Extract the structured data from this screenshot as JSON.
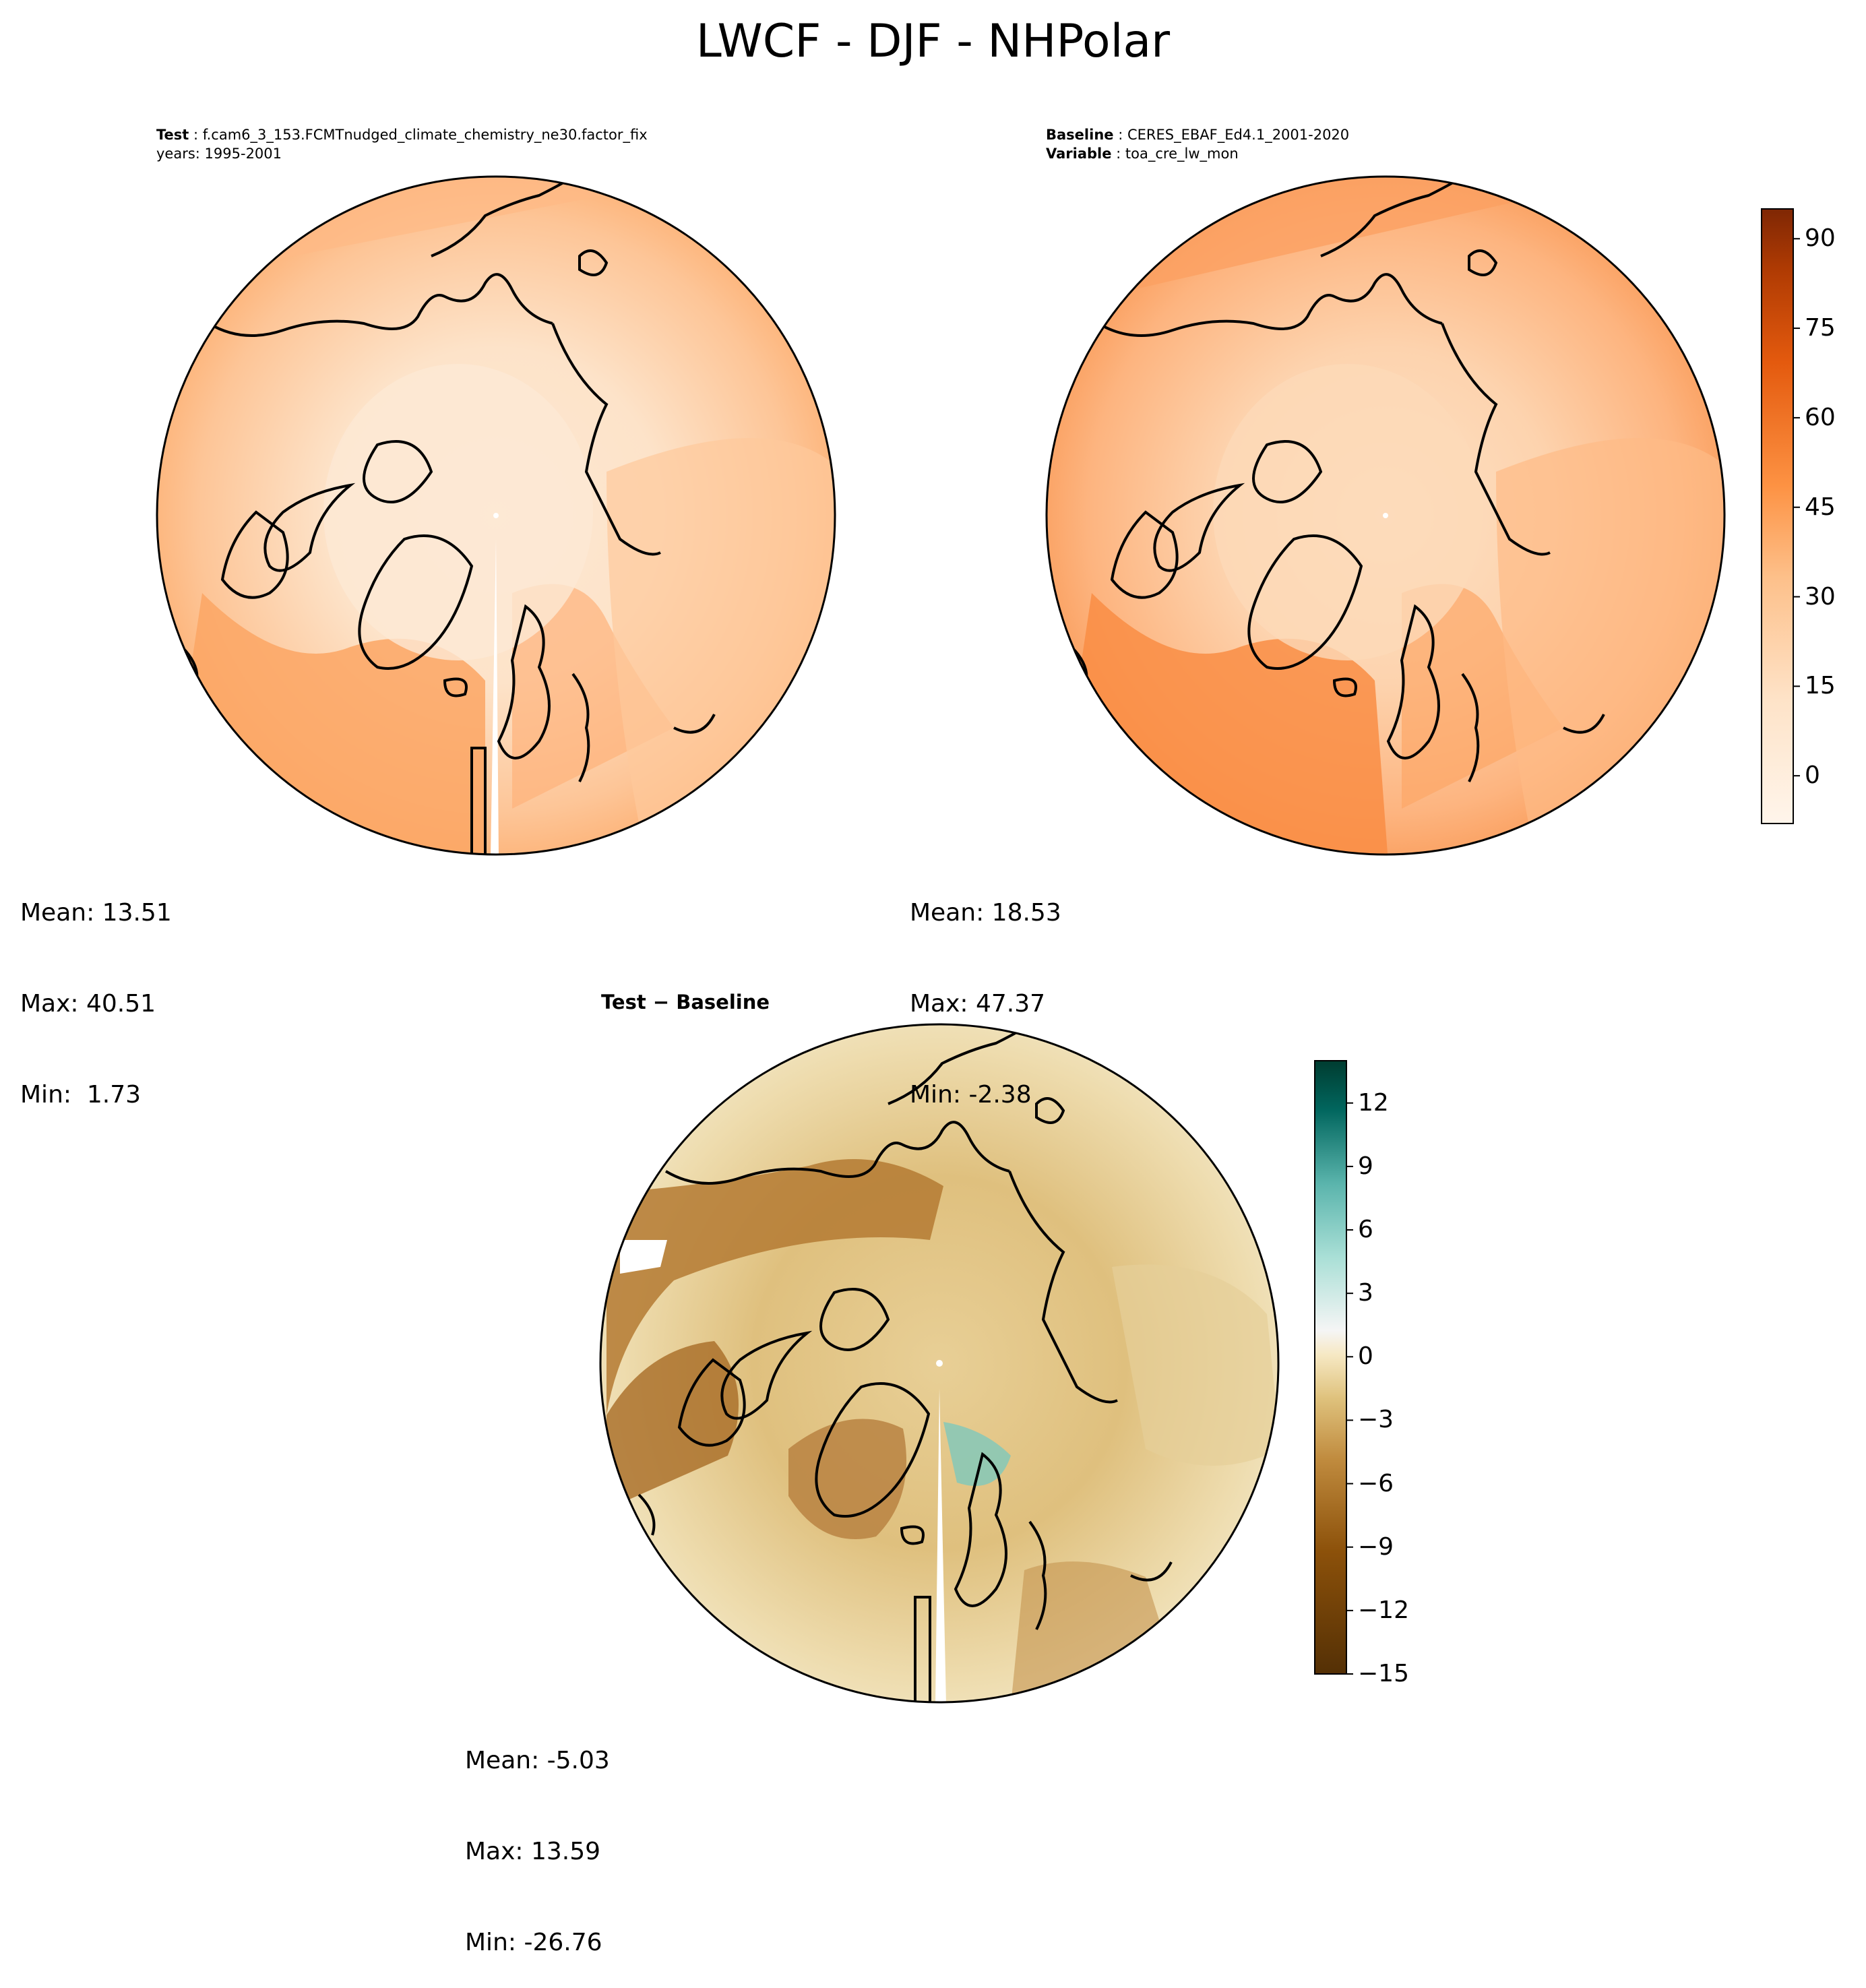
{
  "title": "LWCF - DJF - NHPolar",
  "panels": {
    "test": {
      "case_label": "Test",
      "case_value": "f.cam6_3_153.FCMTnudged_climate_chemistry_ne30.factor_fix",
      "years": "years: 1995-2001",
      "mean": "Mean: 13.51",
      "max": "Max: 40.51",
      "min": "Min:  1.73"
    },
    "baseline": {
      "case_label": "Baseline",
      "case_value": "CERES_EBAF_Ed4.1_2001-2020",
      "variable_label": "Variable",
      "variable_value": "toa_cre_lw_mon",
      "mean": "Mean: 18.53",
      "max": "Max: 47.37",
      "min": "Min: -2.38"
    },
    "diff": {
      "title": "Test − Baseline",
      "mean": "Mean: -5.03",
      "max": "Max: 13.59",
      "min": "Min: -26.76"
    }
  },
  "chart_data": [
    {
      "type": "heatmap",
      "name": "Test",
      "projection": "north polar stereographic",
      "summary": {
        "mean": 13.51,
        "max": 40.51,
        "min": 1.73
      },
      "colormap": "Oranges",
      "colorbar_range": [
        -8,
        95
      ]
    },
    {
      "type": "heatmap",
      "name": "Baseline",
      "projection": "north polar stereographic",
      "summary": {
        "mean": 18.53,
        "max": 47.37,
        "min": -2.38
      },
      "colormap": "Oranges",
      "colorbar": {
        "range": [
          -8,
          95
        ],
        "ticks": [
          0,
          15,
          30,
          45,
          60,
          75,
          90
        ]
      }
    },
    {
      "type": "heatmap",
      "name": "Test − Baseline",
      "projection": "north polar stereographic",
      "summary": {
        "mean": -5.03,
        "max": 13.59,
        "min": -26.76
      },
      "colormap": "BrBG",
      "colorbar": {
        "range": [
          -15,
          14
        ],
        "ticks": [
          -15,
          -12,
          -9,
          -6,
          -3,
          0,
          3,
          6,
          9,
          12
        ],
        "tick_labels": [
          "−15",
          "−12",
          "−9",
          "−6",
          "−3",
          "0",
          "3",
          "6",
          "9",
          "12"
        ]
      }
    }
  ],
  "colors": {
    "orange_low": "#fff5eb",
    "orange_mid": "#fdae6b",
    "orange_high": "#7f2704",
    "brbg_low": "#543005",
    "brbg_mid": "#f5f5f5",
    "brbg_high": "#003c30"
  }
}
